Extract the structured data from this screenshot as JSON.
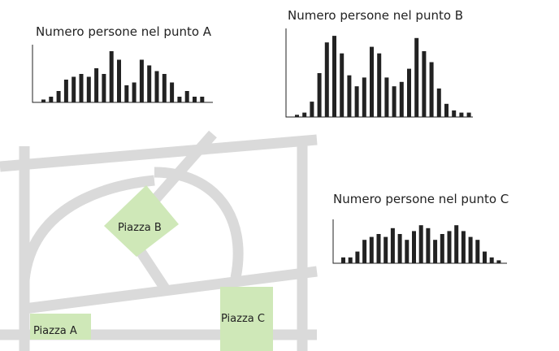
{
  "chart_data": [
    {
      "id": "A",
      "type": "bar",
      "title": "Numero persone nel punto A",
      "values": [
        1,
        2,
        4,
        8,
        9,
        10,
        9,
        12,
        10,
        18,
        15,
        6,
        7,
        15,
        13,
        11,
        10,
        7,
        2,
        4,
        2,
        2
      ],
      "ylim": [
        0,
        20
      ],
      "grid": false
    },
    {
      "id": "B",
      "type": "bar",
      "title": "Numero persone nel punto B",
      "values": [
        1,
        2,
        7,
        20,
        34,
        37,
        29,
        19,
        14,
        18,
        32,
        29,
        18,
        14,
        16,
        22,
        36,
        30,
        25,
        13,
        6,
        3,
        2,
        2
      ],
      "ylim": [
        0,
        40
      ],
      "grid": false
    },
    {
      "id": "C",
      "type": "bar",
      "title": "Numero persone nel punto C",
      "values": [
        2,
        2,
        4,
        8,
        9,
        10,
        9,
        12,
        10,
        8,
        11,
        13,
        12,
        8,
        10,
        11,
        13,
        11,
        9,
        8,
        4,
        2,
        1
      ],
      "ylim": [
        0,
        20
      ],
      "grid": false
    }
  ],
  "map": {
    "squares": [
      {
        "name": "Piazza A"
      },
      {
        "name": "Piazza B"
      },
      {
        "name": "Piazza C"
      }
    ],
    "colors": {
      "road": "#dadada",
      "square": "#cfe8b8",
      "text": "#222222",
      "bar": "#222222"
    }
  }
}
